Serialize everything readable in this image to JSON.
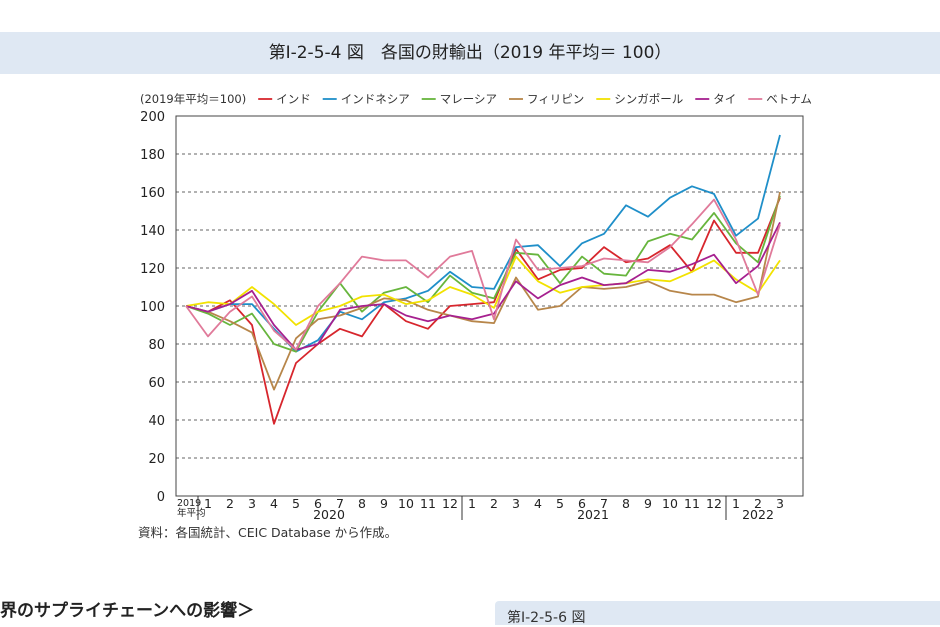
{
  "figure": {
    "title": "第Ⅰ-2-5-4 図　各国の財輸出（2019 年平均＝ 100）",
    "source": "資料：各国統計、CEIC Database から作成。"
  },
  "below": {
    "section_heading": "界のサプライチェーンへの影響＞",
    "next_figure_label": "第Ⅰ-2-5-6 図"
  },
  "chart_data": {
    "type": "line",
    "unit_label": "(2019年平均＝100)",
    "base_label": [
      "2019",
      "年平均"
    ],
    "x": [
      "2019年平均",
      "1",
      "2",
      "3",
      "4",
      "5",
      "6",
      "7",
      "8",
      "9",
      "10",
      "11",
      "12",
      "1",
      "2",
      "3",
      "4",
      "5",
      "6",
      "7",
      "8",
      "9",
      "10",
      "11",
      "12",
      "1",
      "2",
      "3"
    ],
    "year_groups": [
      {
        "label": "2020",
        "start": 1,
        "end": 12
      },
      {
        "label": "2021",
        "start": 13,
        "end": 24
      },
      {
        "label": "2022",
        "start": 25,
        "end": 27
      }
    ],
    "ylim": [
      0,
      200
    ],
    "yticks": [
      0,
      20,
      40,
      60,
      80,
      100,
      120,
      140,
      160,
      180,
      200
    ],
    "grid": "horizontal dashed",
    "legend_position": "top",
    "series": [
      {
        "name": "インド",
        "color": "#d7262d",
        "values": [
          100,
          97,
          103,
          90,
          38,
          70,
          80,
          88,
          84,
          101,
          92,
          88,
          100,
          101,
          102,
          130,
          114,
          119,
          120,
          131,
          123,
          125,
          132,
          118,
          145,
          128,
          128,
          157
        ]
      },
      {
        "name": "インドネシア",
        "color": "#1f8fc9",
        "values": [
          100,
          97,
          101,
          101,
          88,
          76,
          82,
          97,
          93,
          102,
          104,
          108,
          118,
          110,
          109,
          131,
          132,
          121,
          133,
          138,
          153,
          147,
          157,
          163,
          159,
          137,
          146,
          190
        ]
      },
      {
        "name": "マレーシア",
        "color": "#67b53d",
        "values": [
          100,
          96,
          90,
          96,
          80,
          76,
          97,
          112,
          97,
          107,
          110,
          102,
          116,
          107,
          104,
          128,
          127,
          112,
          126,
          117,
          116,
          134,
          138,
          135,
          149,
          133,
          123,
          158
        ]
      },
      {
        "name": "フィリピン",
        "color": "#b7864a",
        "values": [
          100,
          97,
          92,
          86,
          56,
          83,
          93,
          95,
          99,
          104,
          103,
          98,
          95,
          92,
          91,
          115,
          98,
          100,
          110,
          109,
          110,
          113,
          108,
          106,
          106,
          102,
          105,
          160
        ]
      },
      {
        "name": "シンガポール",
        "color": "#f2e200",
        "values": [
          100,
          102,
          101,
          110,
          101,
          90,
          97,
          100,
          105,
          106,
          101,
          103,
          110,
          106,
          99,
          126,
          113,
          107,
          110,
          111,
          112,
          114,
          113,
          118,
          124,
          114,
          107,
          124
        ]
      },
      {
        "name": "タイ",
        "color": "#a6208f",
        "values": [
          100,
          97,
          101,
          108,
          90,
          77,
          80,
          98,
          100,
          101,
          95,
          92,
          95,
          93,
          96,
          113,
          104,
          111,
          115,
          111,
          112,
          119,
          118,
          122,
          127,
          112,
          121,
          144
        ]
      },
      {
        "name": "ベトナム",
        "color": "#e07a9a",
        "values": [
          100,
          84,
          97,
          105,
          87,
          77,
          100,
          112,
          126,
          124,
          124,
          115,
          126,
          129,
          93,
          135,
          119,
          120,
          121,
          125,
          124,
          123,
          131,
          143,
          156,
          135,
          106,
          143
        ]
      }
    ]
  }
}
